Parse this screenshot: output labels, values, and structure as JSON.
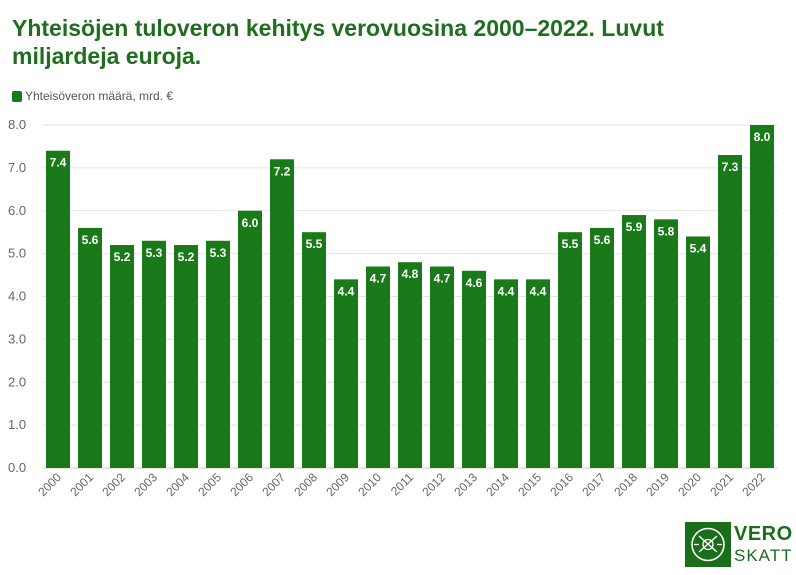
{
  "title": "Yhteisöjen tuloveron kehitys verovuosina 2000–2022. Luvut miljardeja euroja.",
  "legend_label": "Yhteisöveron määrä, mrd. €",
  "colors": {
    "bar": "#1a7a1a",
    "title": "#1e6e1e",
    "grid": "#e3e3e3",
    "axis_text": "#666666"
  },
  "logo": {
    "top": "VERO",
    "bottom": "SKATT"
  },
  "chart_data": {
    "type": "bar",
    "title": "Yhteisöjen tuloveron kehitys verovuosina 2000–2022. Luvut miljardeja euroja.",
    "categories": [
      "2000",
      "2001",
      "2002",
      "2003",
      "2004",
      "2005",
      "2006",
      "2007",
      "2008",
      "2009",
      "2010",
      "2011",
      "2012",
      "2013",
      "2014",
      "2015",
      "2016",
      "2017",
      "2018",
      "2019",
      "2020",
      "2021",
      "2022"
    ],
    "series": [
      {
        "name": "Yhteisöveron määrä, mrd. €",
        "values": [
          7.4,
          5.6,
          5.2,
          5.3,
          5.2,
          5.3,
          6.0,
          7.2,
          5.5,
          4.4,
          4.7,
          4.8,
          4.7,
          4.6,
          4.4,
          4.4,
          5.5,
          5.6,
          5.9,
          5.8,
          5.4,
          7.3,
          8.0
        ]
      }
    ],
    "yticks": [
      "0.0",
      "1.0",
      "2.0",
      "3.0",
      "4.0",
      "5.0",
      "6.0",
      "7.0",
      "8.0"
    ],
    "ylim": [
      0,
      8
    ],
    "xlabel": "",
    "ylabel": "",
    "grid": true,
    "data_labels": true,
    "legend_position": "top-left"
  }
}
